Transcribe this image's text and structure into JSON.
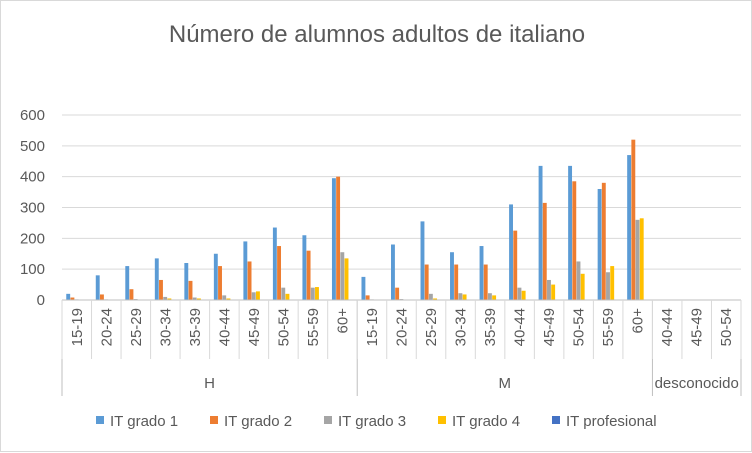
{
  "chart_data": {
    "type": "bar",
    "title": "Número de alumnos adultos de italiano",
    "xlabel": "",
    "ylabel": "",
    "ylim": [
      0,
      600
    ],
    "yticks": [
      0,
      100,
      200,
      300,
      400,
      500,
      600
    ],
    "grid": true,
    "legend_position": "bottom",
    "groups": [
      {
        "name": "H",
        "categories": [
          "15-19",
          "20-24",
          "25-29",
          "30-34",
          "35-39",
          "40-44",
          "45-49",
          "50-54",
          "55-59",
          "60+"
        ]
      },
      {
        "name": "M",
        "categories": [
          "15-19",
          "20-24",
          "25-29",
          "30-34",
          "35-39",
          "40-44",
          "45-49",
          "50-54",
          "55-59",
          "60+"
        ]
      },
      {
        "name": "desconocido",
        "categories": [
          "40-44",
          "45-49",
          "50-54"
        ]
      }
    ],
    "series": [
      {
        "name": "IT grado 1",
        "color": "#5b9bd5",
        "values": [
          20,
          80,
          110,
          135,
          120,
          150,
          190,
          235,
          210,
          395,
          75,
          180,
          255,
          155,
          175,
          310,
          435,
          435,
          360,
          470,
          0,
          0,
          0
        ]
      },
      {
        "name": "IT grado 2",
        "color": "#ed7d31",
        "values": [
          8,
          18,
          35,
          65,
          62,
          110,
          125,
          175,
          160,
          400,
          15,
          40,
          115,
          115,
          115,
          225,
          315,
          385,
          380,
          520,
          0,
          0,
          0
        ]
      },
      {
        "name": "IT grado 3",
        "color": "#a5a5a5",
        "values": [
          2,
          2,
          3,
          10,
          8,
          15,
          25,
          40,
          40,
          155,
          2,
          3,
          20,
          22,
          22,
          40,
          65,
          125,
          90,
          260,
          0,
          0,
          0
        ]
      },
      {
        "name": "IT grado 4",
        "color": "#ffc000",
        "values": [
          0,
          0,
          0,
          5,
          5,
          5,
          28,
          20,
          42,
          135,
          0,
          0,
          5,
          18,
          15,
          30,
          50,
          85,
          110,
          265,
          0,
          0,
          0
        ]
      },
      {
        "name": "IT profesional",
        "color": "#4472c4",
        "values": [
          0,
          0,
          0,
          0,
          0,
          0,
          0,
          0,
          0,
          0,
          0,
          0,
          0,
          0,
          0,
          0,
          0,
          0,
          0,
          0,
          0,
          0,
          0
        ]
      }
    ]
  }
}
